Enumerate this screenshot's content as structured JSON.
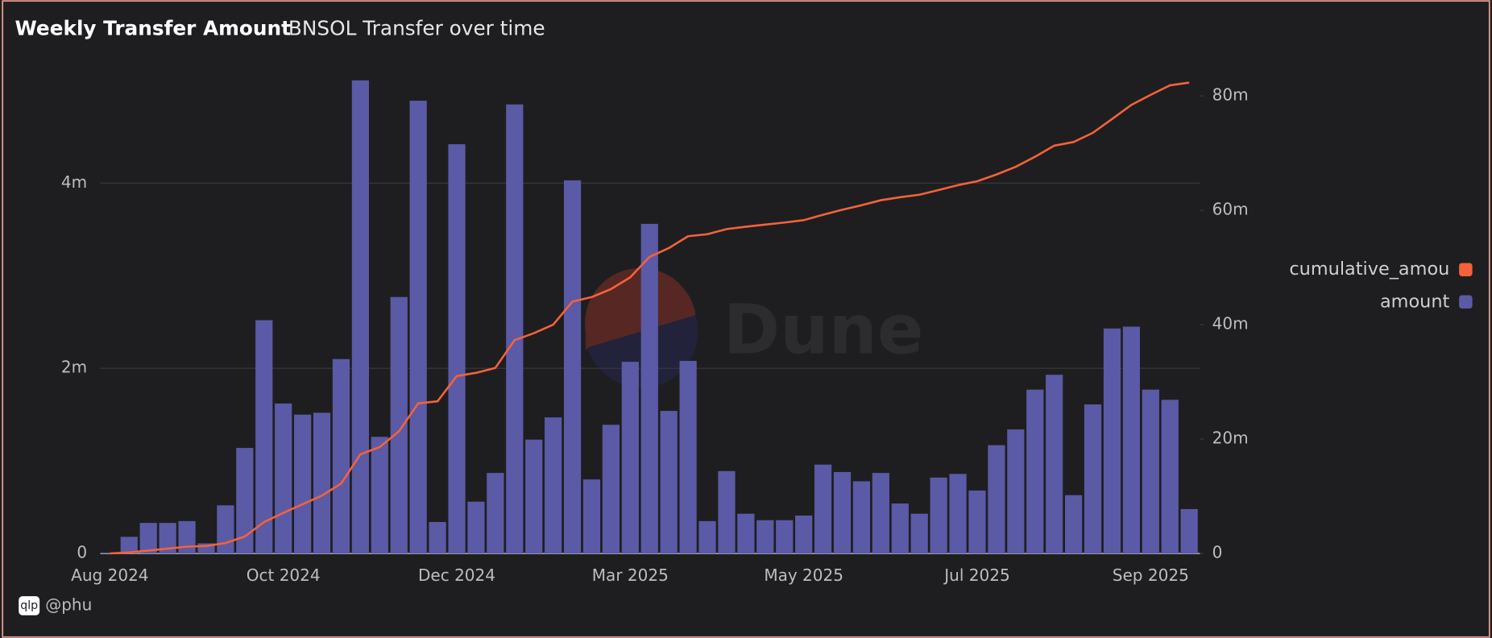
{
  "chart_data": {
    "type": "bar",
    "title": "Weekly Transfer Amount",
    "subtitle": "BNSOL Transfer over time",
    "watermark": "Dune",
    "logo": "qlp",
    "author": "@phu",
    "categories": [
      "Aug 2024",
      null,
      null,
      null,
      null,
      null,
      null,
      null,
      null,
      "Oct 2024",
      null,
      null,
      null,
      null,
      null,
      null,
      null,
      null,
      "Dec 2024",
      null,
      null,
      null,
      null,
      null,
      null,
      null,
      null,
      "Mar 2025",
      null,
      null,
      null,
      null,
      null,
      null,
      null,
      null,
      "May 2025",
      null,
      null,
      null,
      null,
      null,
      null,
      null,
      null,
      "Jul 2025",
      null,
      null,
      null,
      null,
      null,
      null,
      null,
      null,
      "Sep 2025",
      null,
      null
    ],
    "series": [
      {
        "name": "cumulative_amou",
        "color": "#f4623a",
        "type": "line",
        "axis": "y2",
        "values": [
          0.01,
          0.19,
          0.52,
          0.85,
          1.2,
          1.31,
          1.83,
          2.97,
          5.49,
          7.11,
          8.61,
          10.13,
          12.23,
          17.34,
          18.6,
          21.37,
          26.26,
          26.6,
          31.02,
          31.58,
          32.45,
          37.3,
          38.53,
          40.0,
          44.03,
          44.83,
          46.22,
          48.29,
          51.85,
          53.39,
          55.47,
          55.82,
          56.71,
          57.14,
          57.5,
          57.86,
          58.27,
          59.23,
          60.11,
          60.89,
          61.76,
          62.3,
          62.73,
          63.55,
          64.41,
          65.09,
          66.26,
          67.6,
          69.37,
          71.3,
          71.93,
          73.54,
          75.97,
          78.42,
          80.19,
          81.85,
          82.33
        ]
      },
      {
        "name": "amount",
        "color": "#5b5aa6",
        "type": "bar",
        "values": [
          0.01,
          0.18,
          0.33,
          0.33,
          0.35,
          0.11,
          0.52,
          1.14,
          2.52,
          1.62,
          1.5,
          1.52,
          2.1,
          5.11,
          1.26,
          2.77,
          4.89,
          0.34,
          4.42,
          0.56,
          0.87,
          4.85,
          1.23,
          1.47,
          4.03,
          0.8,
          1.39,
          2.07,
          3.56,
          1.54,
          2.08,
          0.35,
          0.89,
          0.43,
          0.36,
          0.36,
          0.41,
          0.96,
          0.88,
          0.78,
          0.87,
          0.54,
          0.43,
          0.82,
          0.86,
          0.68,
          1.17,
          1.34,
          1.77,
          1.93,
          0.63,
          1.61,
          2.43,
          2.45,
          1.77,
          1.66,
          0.48
        ]
      }
    ],
    "ylim": [
      0,
      5.26
    ],
    "yticks": [
      0,
      {
        "value": 2,
        "label": "2m"
      },
      {
        "value": 4,
        "label": "4m"
      }
    ],
    "y2lim": [
      0,
      85.15
    ],
    "y2ticks": [
      0,
      {
        "value": 20,
        "label": "20m"
      },
      {
        "value": 40,
        "label": "40m"
      },
      {
        "value": 60,
        "label": "60m"
      },
      {
        "value": 80,
        "label": "80m"
      }
    ],
    "grid": true,
    "legend": "right"
  }
}
